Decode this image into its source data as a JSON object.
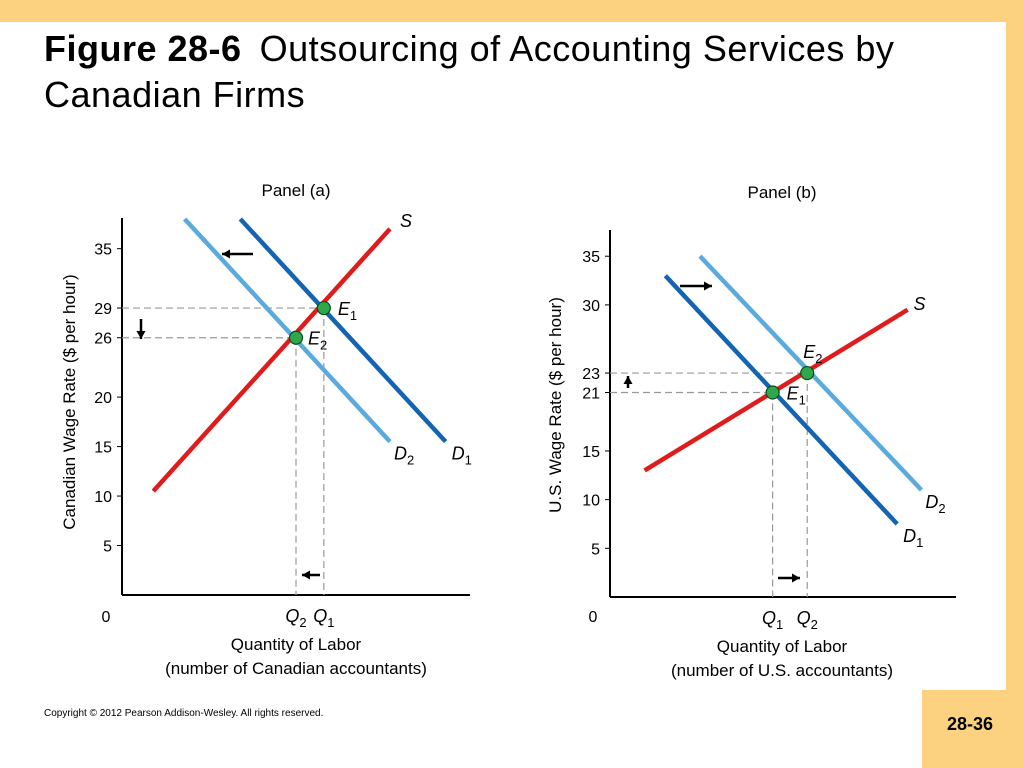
{
  "title": {
    "figure": "Figure 28-6",
    "text": "Outsourcing of Accounting Services by Canadian Firms"
  },
  "copyright": "Copyright © 2012 Pearson Addison-Wesley. All rights reserved.",
  "page_number": "28-36",
  "colors": {
    "frame": "#fcd280",
    "supply": "#e01b1b",
    "demand_original": "#1464b4",
    "demand_new": "#5aaade",
    "point": "#2ea84a"
  },
  "chart_data": [
    {
      "type": "line",
      "title": "Panel (a)",
      "ylabel": "Canadian Wage Rate ($ per hour)",
      "xlabel_lines": [
        "Quantity of Labor",
        "(number of Canadian accountants)"
      ],
      "origin_label": "0",
      "ylim": [
        0,
        38
      ],
      "xlim": [
        0,
        100
      ],
      "yticks": [
        5,
        10,
        15,
        20,
        26,
        29,
        35
      ],
      "xticks": [
        {
          "x": 50,
          "base": "Q",
          "sub": "2"
        },
        {
          "x": 58,
          "base": "Q",
          "sub": "1"
        }
      ],
      "series": [
        {
          "name": "S",
          "role": "supply",
          "points": [
            [
              9,
              10.5
            ],
            [
              77,
              37
            ]
          ],
          "label_base": "S",
          "label_sub": ""
        },
        {
          "name": "D1",
          "role": "demand_original",
          "points": [
            [
              34,
              38
            ],
            [
              93,
              15.5
            ]
          ],
          "label_base": "D",
          "label_sub": "1"
        },
        {
          "name": "D2",
          "role": "demand_new",
          "points": [
            [
              18,
              38
            ],
            [
              77,
              15.5
            ]
          ],
          "label_base": "D",
          "label_sub": "2"
        }
      ],
      "equilibria": [
        {
          "name": "E1",
          "x": 58,
          "y": 29,
          "label_base": "E",
          "label_sub": "1"
        },
        {
          "name": "E2",
          "x": 50,
          "y": 26,
          "label_base": "E",
          "label_sub": "2"
        }
      ],
      "shift": "demand decreases (shifts left); wage falls from 29 to 26; quantity falls from Q1 to Q2"
    },
    {
      "type": "line",
      "title": "Panel (b)",
      "ylabel": "U.S. Wage Rate ($ per hour)",
      "xlabel_lines": [
        "Quantity of Labor",
        "(number of U.S. accountants)"
      ],
      "origin_label": "0",
      "ylim": [
        0,
        38
      ],
      "xlim": [
        0,
        100
      ],
      "yticks": [
        5,
        10,
        15,
        21,
        23,
        30,
        35
      ],
      "xticks": [
        {
          "x": 47,
          "base": "Q",
          "sub": "1"
        },
        {
          "x": 57,
          "base": "Q",
          "sub": "2"
        }
      ],
      "series": [
        {
          "name": "S",
          "role": "supply",
          "points": [
            [
              10,
              13
            ],
            [
              86,
              29.5
            ]
          ],
          "label_base": "S",
          "label_sub": ""
        },
        {
          "name": "D1",
          "role": "demand_original",
          "points": [
            [
              16,
              33
            ],
            [
              83,
              7.5
            ]
          ],
          "label_base": "D",
          "label_sub": "1"
        },
        {
          "name": "D2",
          "role": "demand_new",
          "points": [
            [
              26,
              35
            ],
            [
              90,
              11
            ]
          ],
          "label_base": "D",
          "label_sub": "2"
        }
      ],
      "equilibria": [
        {
          "name": "E1",
          "x": 47,
          "y": 21,
          "label_base": "E",
          "label_sub": "1"
        },
        {
          "name": "E2",
          "x": 57,
          "y": 23,
          "label_base": "E",
          "label_sub": "2"
        }
      ],
      "shift": "demand increases (shifts right); wage rises from 21 to 23; quantity rises from Q1 to Q2"
    }
  ]
}
